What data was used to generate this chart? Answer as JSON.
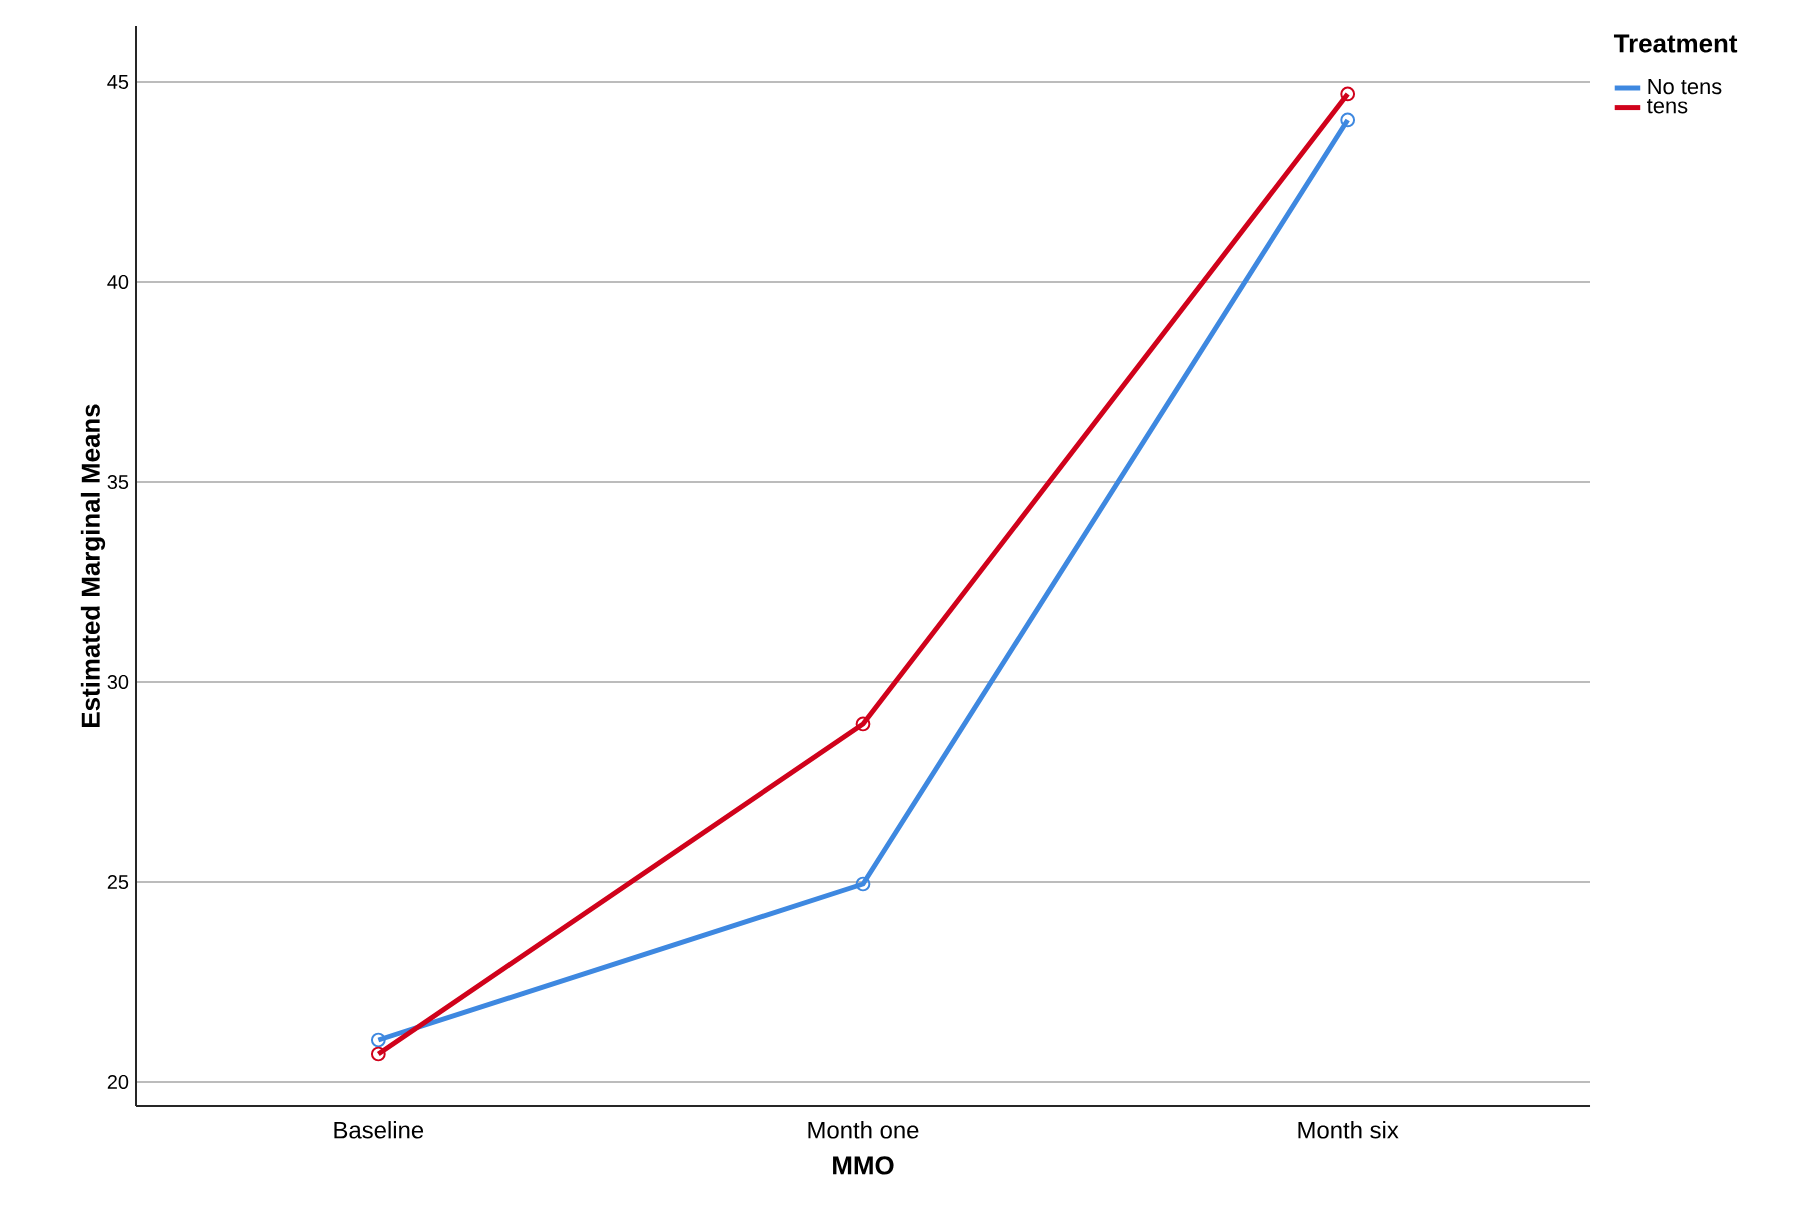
{
  "chart_data": {
    "type": "line",
    "xlabel": "MMO",
    "ylabel": "Estimated Marginal Means",
    "legend_title": "Treatment",
    "categories": [
      "Baseline",
      "Month one",
      "Month six"
    ],
    "series": [
      {
        "name": "No tens",
        "color": "#3e88e0",
        "values": [
          21.05,
          24.95,
          44.05
        ]
      },
      {
        "name": "tens",
        "color": "#d0021b",
        "values": [
          20.7,
          28.95,
          44.7
        ]
      }
    ],
    "ylim": [
      19.4,
      46.4
    ],
    "yticks": [
      20,
      25,
      30,
      35,
      40,
      45
    ],
    "grid": "y",
    "legend": "top right",
    "marker": "circle",
    "line_style": "solid"
  }
}
